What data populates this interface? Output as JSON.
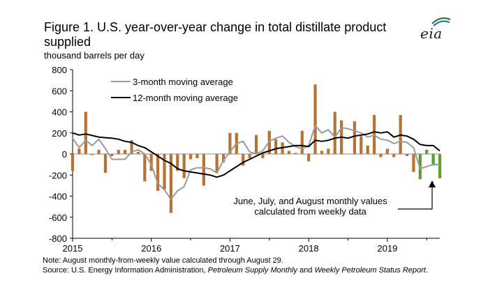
{
  "figure": {
    "title": "Figure 1. U.S. year-over-year change in total distillate product supplied",
    "units": "thousand barrels per day",
    "logo_text": "eia",
    "note": "Note: August monthly-from-weekly value calculated through August 29.",
    "source_prefix": "Source: U.S. Energy Information Administration, ",
    "source_pub1": "Petroleum Supply Monthly",
    "source_and": " and ",
    "source_pub2": "Weekly Petroleum Status Report",
    "source_end": ".",
    "annotation": "June, July, and August monthly values calculated from weekly data"
  },
  "colors": {
    "bar_monthly": "#b87333",
    "bar_weekly": "#5aa02c",
    "ma3": "#9a9a9a",
    "ma12": "#000000",
    "zero_line": "#888888",
    "axis": "#000000"
  },
  "chart_data": {
    "type": "bar+line",
    "units": "thousand barrels per day",
    "xlabels": [
      "2015",
      "2016",
      "2017",
      "2018",
      "2019"
    ],
    "yticks": [
      "800",
      "600",
      "400",
      "200",
      "0",
      "-200",
      "-400",
      "-600",
      "-800"
    ],
    "ylim": [
      -800,
      800
    ],
    "start": "2015-01",
    "end": "2019-08",
    "legend": [
      "3-month moving average",
      "12-month moving average"
    ],
    "monthly_change": [
      -160,
      50,
      400,
      -10,
      40,
      -180,
      -20,
      40,
      40,
      130,
      20,
      -260,
      -160,
      -350,
      -340,
      -560,
      -160,
      -230,
      -50,
      -40,
      -300,
      0,
      -180,
      -80,
      200,
      200,
      -110,
      -40,
      180,
      -40,
      220,
      140,
      110,
      30,
      10,
      220,
      -70,
      660,
      30,
      50,
      400,
      320,
      0,
      310,
      170,
      80,
      370,
      -30,
      50,
      -30,
      370,
      -20,
      -170,
      -240,
      40,
      -110,
      -230
    ],
    "weekly_derived_from_index": 53,
    "ma3": [
      150,
      60,
      130,
      80,
      140,
      50,
      -50,
      -50,
      -50,
      20,
      40,
      0,
      -100,
      -280,
      -340,
      -430,
      -350,
      -310,
      -150,
      -130,
      -130,
      -140,
      -180,
      -60,
      20,
      100,
      120,
      20,
      0,
      30,
      120,
      150,
      170,
      110,
      70,
      50,
      80,
      270,
      200,
      230,
      160,
      250,
      240,
      220,
      200,
      160,
      180,
      140,
      130,
      100,
      120,
      110,
      60,
      -140,
      -120,
      -100,
      -100
    ],
    "ma12": [
      200,
      180,
      190,
      175,
      160,
      155,
      150,
      140,
      120,
      110,
      80,
      60,
      20,
      -20,
      -60,
      -90,
      -140,
      -160,
      -170,
      -180,
      -190,
      -200,
      -220,
      -200,
      -160,
      -120,
      -80,
      -50,
      -20,
      10,
      30,
      50,
      60,
      70,
      80,
      80,
      70,
      130,
      120,
      130,
      150,
      160,
      150,
      170,
      180,
      190,
      210,
      200,
      210,
      160,
      180,
      170,
      140,
      90,
      80,
      80,
      30
    ]
  }
}
